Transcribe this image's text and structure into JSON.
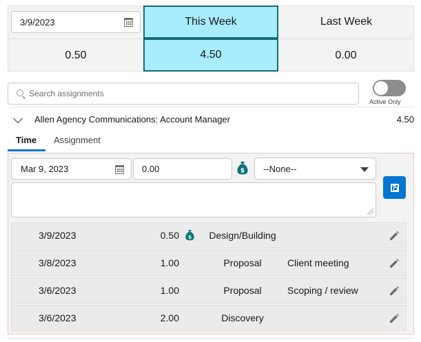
{
  "summary": {
    "date_value": "3/9/2023",
    "this_week_label": "This Week",
    "last_week_label": "Last Week",
    "today_hours": "0.50",
    "this_week_hours": "4.50",
    "last_week_hours": "0.00"
  },
  "search": {
    "placeholder": "Search assignments"
  },
  "toggle": {
    "label": "Active Only",
    "on": false
  },
  "assignment": {
    "title": "Allen Agency Communications: Account Manager",
    "total": "4.50"
  },
  "tabs": [
    {
      "label": "Time",
      "active": true
    },
    {
      "label": "Assignment",
      "active": false
    }
  ],
  "entry_form": {
    "date": "Mar 9, 2023",
    "hours": "0.00",
    "task_selected": "--None--",
    "notes": ""
  },
  "entries": [
    {
      "date": "3/9/2023",
      "hours": "0.50",
      "billable": true,
      "task": "Design/Building",
      "description": ""
    },
    {
      "date": "3/8/2023",
      "hours": "1.00",
      "billable": false,
      "task": "Proposal",
      "description": "Client meeting"
    },
    {
      "date": "3/6/2023",
      "hours": "1.00",
      "billable": false,
      "task": "Proposal",
      "description": "Scoping / review"
    },
    {
      "date": "3/6/2023",
      "hours": "2.00",
      "billable": false,
      "task": "Discovery",
      "description": ""
    }
  ],
  "colors": {
    "accent": "#0176d3",
    "highlight": "#a8ecff",
    "highlight_border": "#176a74",
    "billable_icon": "#0b7477"
  }
}
